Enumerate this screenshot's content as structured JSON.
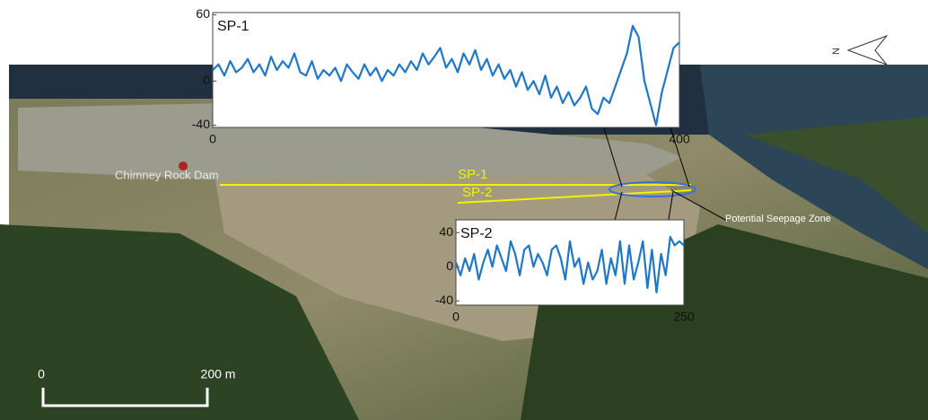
{
  "chart_data": [
    {
      "type": "line",
      "title": "SP-1",
      "color": "#1f77c8",
      "x": [
        0,
        5,
        10,
        15,
        20,
        25,
        30,
        35,
        40,
        45,
        50,
        55,
        60,
        65,
        70,
        75,
        80,
        85,
        90,
        95,
        100,
        105,
        110,
        115,
        120,
        125,
        130,
        135,
        140,
        145,
        150,
        155,
        160,
        165,
        170,
        175,
        180,
        185,
        190,
        195,
        200,
        205,
        210,
        215,
        220,
        225,
        230,
        235,
        240,
        245,
        250,
        255,
        260,
        265,
        270,
        275,
        280,
        285,
        290,
        295,
        300,
        305,
        310,
        315,
        320,
        325,
        330,
        335,
        340,
        345,
        350,
        355,
        360,
        365,
        370,
        375,
        380,
        385,
        390,
        395,
        400
      ],
      "values": [
        10,
        15,
        5,
        18,
        8,
        12,
        20,
        8,
        15,
        5,
        22,
        10,
        18,
        12,
        25,
        8,
        5,
        18,
        2,
        10,
        5,
        12,
        0,
        15,
        8,
        2,
        15,
        5,
        12,
        0,
        10,
        5,
        15,
        8,
        18,
        10,
        25,
        15,
        22,
        30,
        12,
        20,
        8,
        25,
        15,
        28,
        10,
        20,
        5,
        15,
        2,
        10,
        -5,
        8,
        -8,
        0,
        -12,
        5,
        -15,
        -5,
        -20,
        -10,
        -22,
        -15,
        -5,
        -25,
        -30,
        -15,
        -20,
        -5,
        10,
        25,
        50,
        40,
        0,
        -20,
        -40,
        -10,
        10,
        30,
        35
      ],
      "xlim": [
        0,
        400
      ],
      "xticks": [
        0,
        400
      ],
      "ylim": [
        -42,
        62
      ],
      "yticks": [
        -40,
        0,
        60
      ]
    },
    {
      "type": "line",
      "title": "SP-2",
      "color": "#1f77c8",
      "x": [
        0,
        5,
        10,
        15,
        20,
        25,
        30,
        35,
        40,
        45,
        50,
        55,
        60,
        65,
        70,
        75,
        80,
        85,
        90,
        95,
        100,
        105,
        110,
        115,
        120,
        125,
        130,
        135,
        140,
        145,
        150,
        155,
        160,
        165,
        170,
        175,
        180,
        185,
        190,
        195,
        200,
        205,
        210,
        215,
        220,
        225,
        230,
        235,
        240,
        245,
        250
      ],
      "values": [
        5,
        -10,
        10,
        -5,
        15,
        -15,
        5,
        20,
        0,
        25,
        10,
        -5,
        30,
        15,
        -10,
        20,
        25,
        0,
        15,
        5,
        -10,
        20,
        25,
        10,
        -15,
        30,
        0,
        10,
        -20,
        5,
        -15,
        -5,
        20,
        -20,
        10,
        -10,
        30,
        -20,
        25,
        -15,
        5,
        30,
        -25,
        20,
        -30,
        15,
        -10,
        35,
        25,
        30,
        25
      ],
      "xlim": [
        0,
        250
      ],
      "xticks": [
        0,
        250
      ],
      "ylim": [
        -45,
        55
      ],
      "yticks": [
        -40,
        0,
        40
      ]
    }
  ],
  "map": {
    "dam_label": "Chimney Rock Dam",
    "line_labels": [
      "SP-1",
      "SP-2"
    ],
    "annotation": "Potential Seepage Zone",
    "north_label": "N",
    "scale_start": "0",
    "scale_end": "200 m"
  }
}
